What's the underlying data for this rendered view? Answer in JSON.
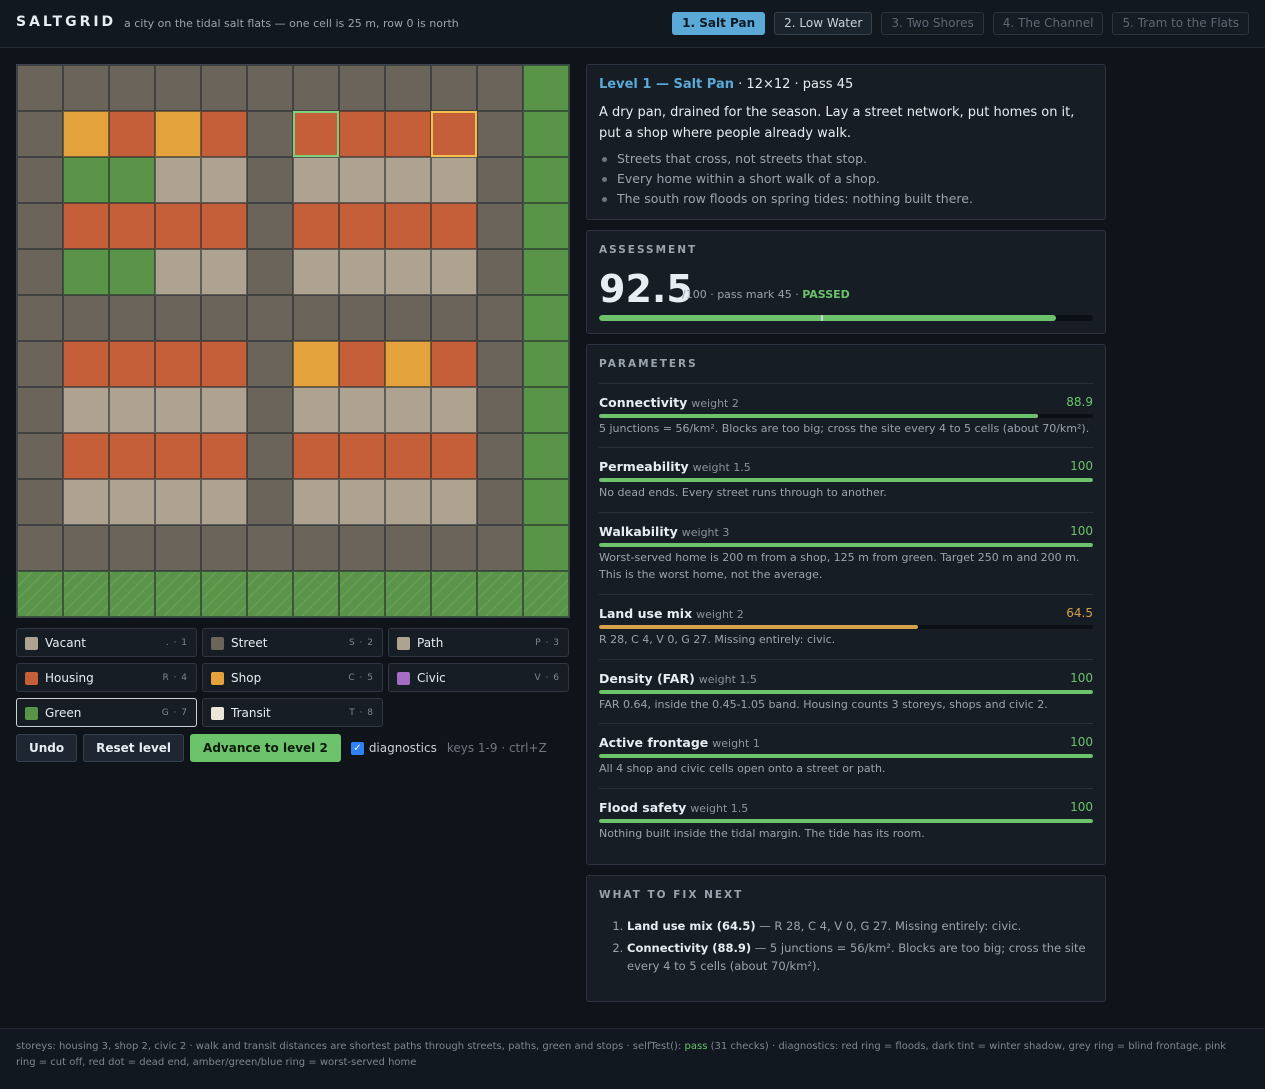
{
  "app": {
    "title": "SALTGRID",
    "tagline": "a city on the tidal salt flats — one cell is 25 m, row 0 is north"
  },
  "tabs": [
    {
      "label": "1. Salt Pan",
      "state": "active"
    },
    {
      "label": "2. Low Water",
      "state": "open"
    },
    {
      "label": "3. Two Shores",
      "state": "locked"
    },
    {
      "label": "4. The Channel",
      "state": "locked"
    },
    {
      "label": "5. Tram to the Flats",
      "state": "locked"
    }
  ],
  "colors": {
    "vacant": "#ada390",
    "street": "#6b645b",
    "path": "#ada390",
    "housing": "#c45f3a",
    "shop": "#e3a23c",
    "civic": "#a46cc3",
    "green": "#5a9448",
    "transit": "#ece6d8",
    "accent": "#5aa9d6",
    "pass": "#6cc36b",
    "warn": "#d6a04a"
  },
  "grid": {
    "rows": [
      "SSSSSSSSSSSG",
      "SCRCRSRRRRSG",
      "SGGPPSPPPPSG",
      "SRRRRSRRRRSG",
      "SGGPPSPPPPSG",
      "SSSSSSSSSSSG",
      "SRRRRSCRCRSG",
      "SPPPPSPPPPSG",
      "SRRRRSRRRRSG",
      "SPPPPSPPPPSG",
      "SSSSSSSSSSSG",
      "GGGGGGGGGGGG"
    ],
    "flood_rows": [
      11
    ],
    "rings": [
      {
        "row": 1,
        "col": 6,
        "kind": "green"
      },
      {
        "row": 1,
        "col": 9,
        "kind": "amber"
      }
    ]
  },
  "palette": [
    {
      "label": "Vacant",
      "key": ". · 1",
      "type": "vacant"
    },
    {
      "label": "Street",
      "key": "S · 2",
      "type": "street"
    },
    {
      "label": "Path",
      "key": "P · 3",
      "type": "path"
    },
    {
      "label": "Housing",
      "key": "R · 4",
      "type": "housing"
    },
    {
      "label": "Shop",
      "key": "C · 5",
      "type": "shop"
    },
    {
      "label": "Civic",
      "key": "V · 6",
      "type": "civic"
    },
    {
      "label": "Green",
      "key": "G · 7",
      "type": "green",
      "selected": true
    },
    {
      "label": "Transit",
      "key": "T · 8",
      "type": "transit"
    }
  ],
  "actions": {
    "undo": "Undo",
    "reset": "Reset level",
    "advance": "Advance to level 2",
    "diagnostics_label": "diagnostics",
    "diagnostics_checked": true,
    "keys_hint": "keys 1-9 · ctrl+Z"
  },
  "level": {
    "name": "Level 1 — Salt Pan",
    "meta": "· 12×12 · pass 45",
    "description": "A dry pan, drained for the season. Lay a street network, put homes on it, put a shop where people already walk.",
    "rules": [
      "Streets that cross, not streets that stop.",
      "Every home within a short walk of a shop.",
      "The south row floods on spring tides: nothing built there."
    ]
  },
  "assessment": {
    "title": "ASSESSMENT",
    "score": "92.5",
    "score_value": 92.5,
    "pass_mark": 45,
    "meta": "/100 · pass mark 45 ·",
    "status": "PASSED"
  },
  "parameters": {
    "title": "PARAMETERS",
    "items": [
      {
        "name": "Connectivity",
        "weight": "weight 2",
        "score": "88.9",
        "value": 88.9,
        "status": "pass",
        "desc": "5 junctions = 56/km². Blocks are too big; cross the site every 4 to 5 cells (about 70/km²)."
      },
      {
        "name": "Permeability",
        "weight": "weight 1.5",
        "score": "100",
        "value": 100,
        "status": "pass",
        "desc": "No dead ends. Every street runs through to another."
      },
      {
        "name": "Walkability",
        "weight": "weight 3",
        "score": "100",
        "value": 100,
        "status": "pass",
        "desc": "Worst-served home is 200 m from a shop, 125 m from green. Target 250 m and 200 m. This is the worst home, not the average."
      },
      {
        "name": "Land use mix",
        "weight": "weight 2",
        "score": "64.5",
        "value": 64.5,
        "status": "warn",
        "desc": "R 28, C 4, V 0, G 27. Missing entirely: civic."
      },
      {
        "name": "Density (FAR)",
        "weight": "weight 1.5",
        "score": "100",
        "value": 100,
        "status": "pass",
        "desc": "FAR 0.64, inside the 0.45-1.05 band. Housing counts 3 storeys, shops and civic 2."
      },
      {
        "name": "Active frontage",
        "weight": "weight 1",
        "score": "100",
        "value": 100,
        "status": "pass",
        "desc": "All 4 shop and civic cells open onto a street or path."
      },
      {
        "name": "Flood safety",
        "weight": "weight 1.5",
        "score": "100",
        "value": 100,
        "status": "pass",
        "desc": "Nothing built inside the tidal margin. The tide has its room."
      }
    ]
  },
  "fixes": {
    "title": "WHAT TO FIX NEXT",
    "items": [
      {
        "head": "Land use mix (64.5)",
        "text": " — R 28, C 4, V 0, G 27. Missing entirely: civic."
      },
      {
        "head": "Connectivity (88.9)",
        "text": " — 5 junctions = 56/km². Blocks are too big; cross the site every 4 to 5 cells (about 70/km²)."
      }
    ]
  },
  "footer": {
    "before": "storeys: housing 3, shop 2, civic 2 · walk and transit distances are shortest paths through streets, paths, green and stops · selfTest(): ",
    "pass_word": "pass",
    "after": " (31 checks) · diagnostics: red ring = floods, dark tint = winter shadow, grey ring = blind frontage, pink ring = cut off, red dot = dead end, amber/green/blue ring = worst-served home"
  }
}
